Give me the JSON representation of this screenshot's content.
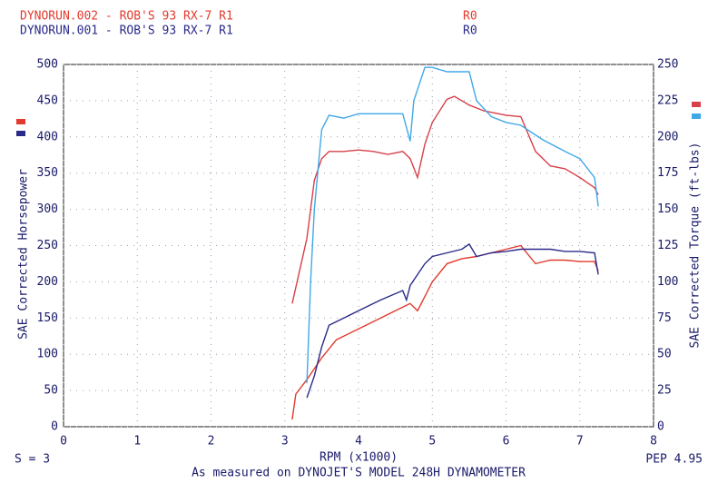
{
  "chart_data": {
    "type": "line",
    "legend": [
      {
        "name": "DYNORUN.002 - ROB'S 93 RX-7 R1",
        "tag": "R0",
        "color": "#e23a2e"
      },
      {
        "name": "DYNORUN.001 - ROB'S 93 RX-7 R1",
        "tag": "R0",
        "color": "#2a2a8a"
      }
    ],
    "ylabel": "SAE Corrected Horsepower",
    "y2label": "SAE Corrected Torque (ft-lbs)",
    "xlabel": "RPM (x1000)",
    "smoothing": "S = 3",
    "version": "PEP 4.95",
    "footer": "As measured on DYNOJET'S MODEL 248H DYNAMOMETER",
    "xlim": [
      0,
      8
    ],
    "xticks": [
      0,
      1,
      2,
      3,
      4,
      5,
      6,
      7,
      8
    ],
    "ylim": [
      0,
      500
    ],
    "yticks": [
      0,
      50,
      100,
      150,
      200,
      250,
      300,
      350,
      400,
      450,
      500
    ],
    "y2lim": [
      0,
      250
    ],
    "y2ticks": [
      0,
      25,
      50,
      75,
      100,
      125,
      150,
      175,
      200,
      225,
      250
    ],
    "grid": true,
    "series": [
      {
        "color": "#e23a2e",
        "axis": "y",
        "x": [
          3.1,
          3.15,
          3.3,
          3.5,
          3.7,
          4.0,
          4.3,
          4.6,
          4.7,
          4.8,
          4.9,
          5.0,
          5.2,
          5.4,
          5.6,
          5.8,
          6.0,
          6.2,
          6.4,
          6.6,
          6.8,
          7.0,
          7.2,
          7.25
        ],
        "values": [
          10,
          45,
          65,
          95,
          120,
          135,
          150,
          165,
          170,
          160,
          180,
          200,
          225,
          232,
          235,
          240,
          245,
          250,
          225,
          230,
          230,
          228,
          228,
          215
        ]
      },
      {
        "color": "#2a2a8a",
        "axis": "y",
        "x": [
          3.3,
          3.4,
          3.5,
          3.6,
          3.8,
          4.0,
          4.3,
          4.6,
          4.65,
          4.7,
          4.9,
          5.0,
          5.2,
          5.4,
          5.5,
          5.6,
          5.8,
          6.0,
          6.2,
          6.4,
          6.6,
          6.8,
          7.0,
          7.2,
          7.25
        ],
        "values": [
          40,
          70,
          110,
          140,
          150,
          160,
          175,
          188,
          175,
          195,
          225,
          235,
          240,
          245,
          252,
          235,
          240,
          242,
          245,
          245,
          245,
          242,
          242,
          240,
          210
        ]
      },
      {
        "color": "#d8404a",
        "axis": "y2",
        "x": [
          3.1,
          3.3,
          3.4,
          3.5,
          3.6,
          3.8,
          4.0,
          4.2,
          4.4,
          4.6,
          4.7,
          4.8,
          4.9,
          5.0,
          5.2,
          5.3,
          5.5,
          5.7,
          6.0,
          6.2,
          6.4,
          6.6,
          6.8,
          7.0,
          7.2,
          7.25
        ],
        "values": [
          85,
          130,
          170,
          185,
          190,
          190,
          191,
          190,
          188,
          190,
          185,
          172,
          195,
          210,
          226,
          228,
          222,
          218,
          215,
          214,
          190,
          180,
          178,
          172,
          165,
          160
        ]
      },
      {
        "color": "#40a8e8",
        "axis": "y2",
        "x": [
          3.3,
          3.35,
          3.4,
          3.5,
          3.6,
          3.8,
          4.0,
          4.3,
          4.6,
          4.7,
          4.75,
          4.9,
          5.0,
          5.2,
          5.5,
          5.6,
          5.8,
          6.0,
          6.2,
          6.5,
          6.8,
          7.0,
          7.2,
          7.25
        ],
        "values": [
          30,
          100,
          150,
          205,
          215,
          213,
          216,
          216,
          216,
          197,
          225,
          248,
          248,
          245,
          245,
          225,
          214,
          210,
          208,
          198,
          190,
          185,
          172,
          152
        ]
      }
    ]
  }
}
